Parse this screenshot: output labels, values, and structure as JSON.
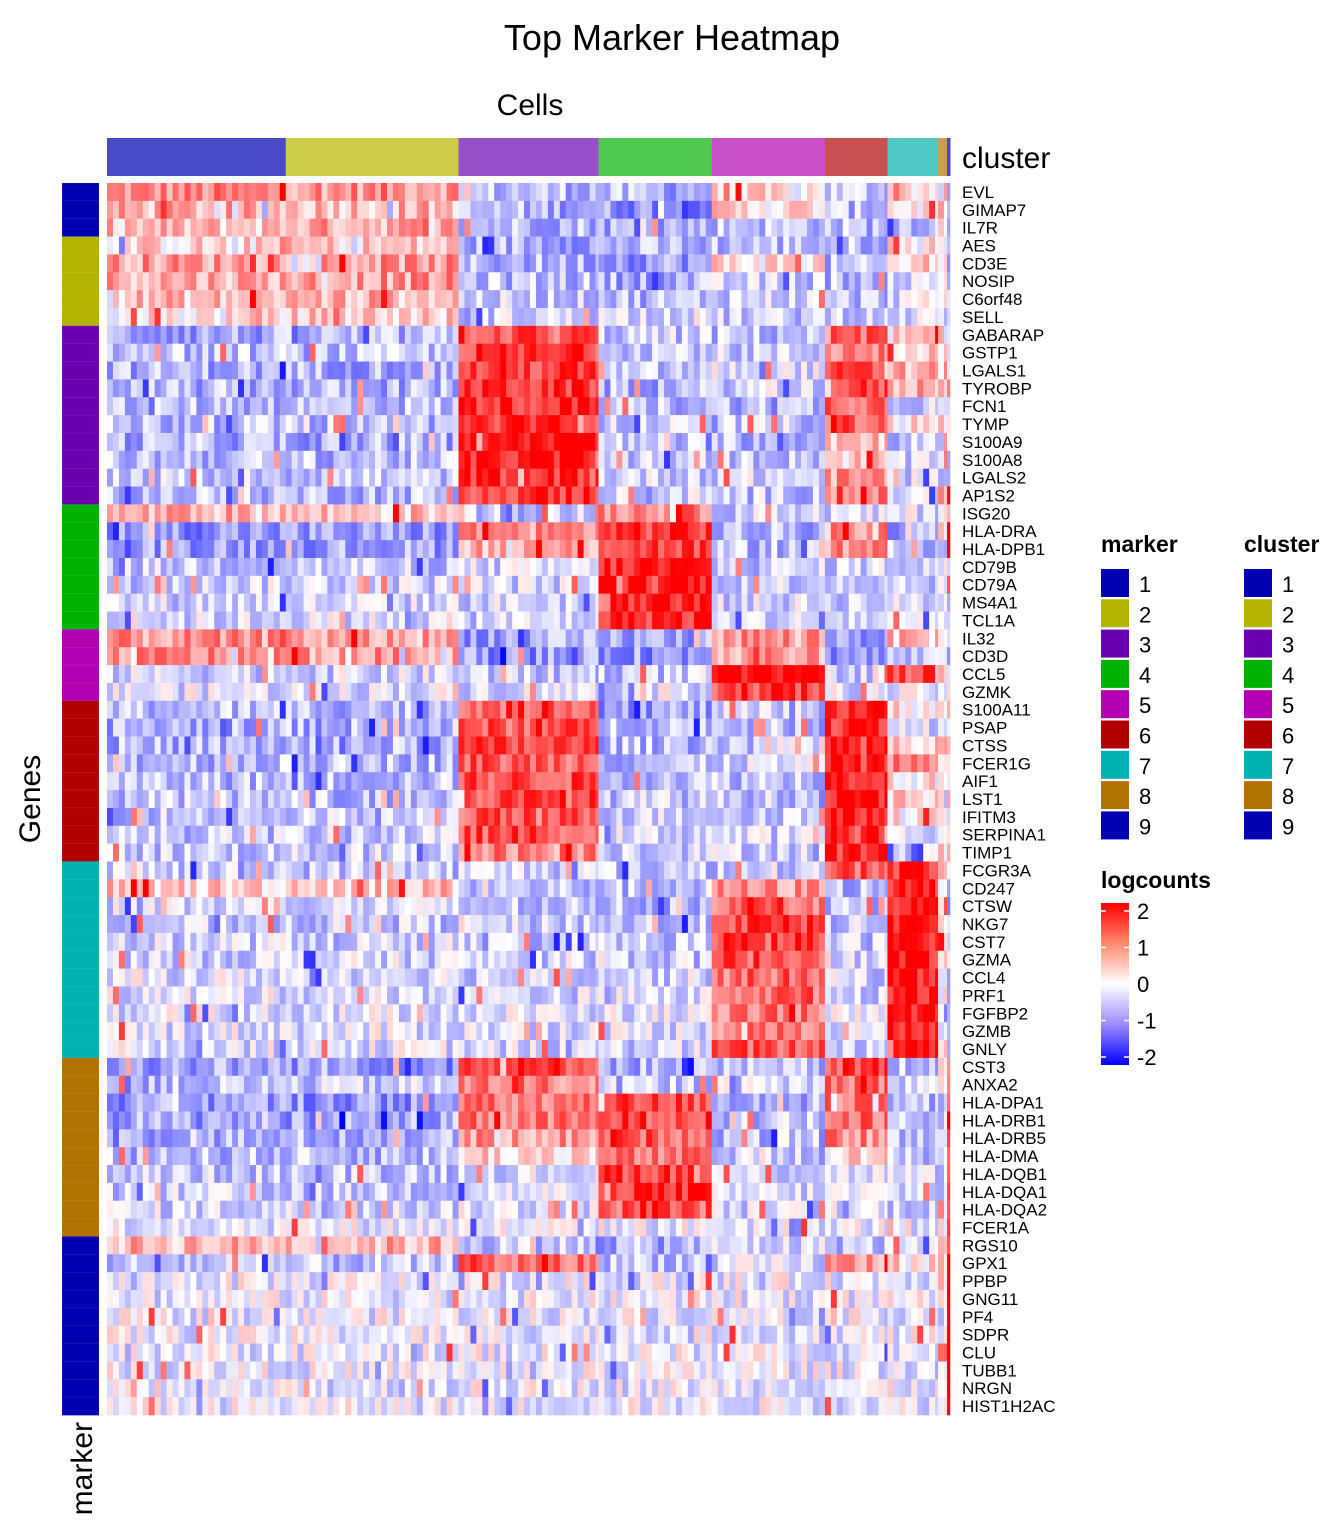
{
  "chart_data": {
    "type": "heatmap",
    "title": "Top Marker Heatmap",
    "column_title": "Cells",
    "row_title": "Genes",
    "row_annotation_label": "marker",
    "column_annotation_label": "cluster",
    "cluster_colors": {
      "1": "#0000b2",
      "2": "#b4b400",
      "3": "#6a00b2",
      "4": "#00b200",
      "5": "#b200b2",
      "6": "#b20000",
      "7": "#00b2b2",
      "8": "#b27200",
      "9": "#0000b2"
    },
    "column_clusters": [
      {
        "cluster": "1",
        "n_cells": 60
      },
      {
        "cluster": "2",
        "n_cells": 58
      },
      {
        "cluster": "3",
        "n_cells": 47
      },
      {
        "cluster": "4",
        "n_cells": 38
      },
      {
        "cluster": "5",
        "n_cells": 38
      },
      {
        "cluster": "6",
        "n_cells": 21
      },
      {
        "cluster": "7",
        "n_cells": 17
      },
      {
        "cluster": "8",
        "n_cells": 3
      },
      {
        "cluster": "9",
        "n_cells": 1
      }
    ],
    "genes": [
      {
        "name": "EVL",
        "marker": "1",
        "levels": [
          0.9,
          0.9,
          -0.5,
          -0.6,
          0.2,
          -0.4,
          0.3,
          0.5,
          -0.5
        ]
      },
      {
        "name": "GIMAP7",
        "marker": "1",
        "levels": [
          0.6,
          0.6,
          -0.6,
          -0.8,
          0.3,
          -0.5,
          0.2,
          0.4,
          -0.5
        ]
      },
      {
        "name": "IL7R",
        "marker": "1",
        "levels": [
          0.5,
          0.7,
          -0.5,
          -0.6,
          -0.4,
          -0.5,
          -0.4,
          0.3,
          -0.5
        ]
      },
      {
        "name": "AES",
        "marker": "2",
        "levels": [
          0.3,
          0.4,
          -0.6,
          -0.6,
          -0.5,
          -0.5,
          0.2,
          0.2,
          -0.6
        ]
      },
      {
        "name": "CD3E",
        "marker": "2",
        "levels": [
          0.8,
          0.8,
          -0.6,
          -0.7,
          0.3,
          -0.6,
          0.2,
          0.3,
          -0.6
        ]
      },
      {
        "name": "NOSIP",
        "marker": "2",
        "levels": [
          0.7,
          0.8,
          -0.5,
          -0.6,
          -0.4,
          -0.5,
          -0.3,
          0.3,
          -0.5
        ]
      },
      {
        "name": "C6orf48",
        "marker": "2",
        "levels": [
          0.5,
          0.6,
          -0.4,
          -0.5,
          -0.3,
          -0.5,
          -0.2,
          0.2,
          -0.5
        ]
      },
      {
        "name": "SELL",
        "marker": "2",
        "levels": [
          0.2,
          0.4,
          -0.3,
          -0.2,
          -0.4,
          -0.3,
          -0.3,
          -0.2,
          -0.3
        ]
      },
      {
        "name": "GABARAP",
        "marker": "3",
        "levels": [
          -0.7,
          -0.6,
          1.4,
          -0.4,
          -0.5,
          1.2,
          0.3,
          0.2,
          0.2
        ]
      },
      {
        "name": "GSTP1",
        "marker": "3",
        "levels": [
          -0.5,
          -0.5,
          1.5,
          -0.3,
          -0.4,
          1.0,
          0.5,
          0.3,
          0.2
        ]
      },
      {
        "name": "LGALS1",
        "marker": "3",
        "levels": [
          -0.6,
          -0.6,
          1.5,
          -0.5,
          -0.2,
          1.3,
          0.6,
          0.5,
          0.3
        ]
      },
      {
        "name": "TYROBP",
        "marker": "3",
        "levels": [
          -0.6,
          -0.6,
          1.6,
          -0.6,
          -0.3,
          1.4,
          0.7,
          0.5,
          0.3
        ]
      },
      {
        "name": "FCN1",
        "marker": "3",
        "levels": [
          -0.5,
          -0.5,
          1.7,
          -0.5,
          -0.5,
          1.3,
          -0.3,
          -0.3,
          -0.3
        ]
      },
      {
        "name": "TYMP",
        "marker": "3",
        "levels": [
          -0.5,
          -0.5,
          1.6,
          -0.4,
          -0.4,
          1.3,
          0.2,
          0.3,
          0.2
        ]
      },
      {
        "name": "S100A9",
        "marker": "3",
        "levels": [
          -0.6,
          -0.6,
          1.9,
          -0.5,
          -0.5,
          0.6,
          -0.4,
          -0.4,
          -0.4
        ]
      },
      {
        "name": "S100A8",
        "marker": "3",
        "levels": [
          -0.5,
          -0.5,
          1.8,
          -0.4,
          -0.4,
          0.4,
          -0.4,
          -0.3,
          -0.3
        ]
      },
      {
        "name": "LGALS2",
        "marker": "3",
        "levels": [
          -0.4,
          -0.4,
          1.7,
          -0.3,
          -0.3,
          0.8,
          -0.3,
          -0.2,
          -0.2
        ]
      },
      {
        "name": "AP1S2",
        "marker": "3",
        "levels": [
          -0.5,
          -0.5,
          1.6,
          -0.3,
          -0.4,
          0.9,
          -0.2,
          0.2,
          1.5
        ]
      },
      {
        "name": "ISG20",
        "marker": "4",
        "levels": [
          0.6,
          0.5,
          -0.4,
          1.0,
          -0.3,
          -0.3,
          -0.2,
          0.2,
          0.5
        ]
      },
      {
        "name": "HLA-DRA",
        "marker": "4",
        "levels": [
          -0.8,
          -0.8,
          0.9,
          1.6,
          -0.6,
          0.9,
          -0.6,
          -0.3,
          1.9
        ]
      },
      {
        "name": "HLA-DPB1",
        "marker": "4",
        "levels": [
          -0.7,
          -0.7,
          0.7,
          1.5,
          -0.5,
          0.8,
          -0.5,
          -0.3,
          1.8
        ]
      },
      {
        "name": "CD79B",
        "marker": "4",
        "levels": [
          -0.4,
          -0.4,
          -0.3,
          1.7,
          -0.4,
          -0.3,
          -0.3,
          -0.2,
          -0.3
        ]
      },
      {
        "name": "CD79A",
        "marker": "4",
        "levels": [
          -0.3,
          -0.3,
          -0.3,
          1.9,
          -0.3,
          -0.3,
          -0.3,
          -0.2,
          -0.3
        ]
      },
      {
        "name": "MS4A1",
        "marker": "4",
        "levels": [
          -0.3,
          -0.3,
          -0.3,
          1.8,
          -0.3,
          -0.3,
          -0.3,
          -0.2,
          -0.3
        ]
      },
      {
        "name": "TCL1A",
        "marker": "4",
        "levels": [
          -0.3,
          -0.2,
          -0.3,
          1.7,
          -0.3,
          -0.3,
          -0.3,
          -0.2,
          -0.3
        ]
      },
      {
        "name": "IL32",
        "marker": "5",
        "levels": [
          0.8,
          0.7,
          -0.7,
          -0.7,
          0.9,
          -0.7,
          0.5,
          0.3,
          -0.6
        ]
      },
      {
        "name": "CD3D",
        "marker": "5",
        "levels": [
          0.9,
          0.8,
          -0.8,
          -0.8,
          0.8,
          -0.8,
          -0.6,
          0.3,
          -0.7
        ]
      },
      {
        "name": "CCL5",
        "marker": "5",
        "levels": [
          -0.3,
          -0.3,
          -0.4,
          -0.4,
          1.9,
          -0.3,
          1.5,
          0.5,
          -0.3
        ]
      },
      {
        "name": "GZMK",
        "marker": "5",
        "levels": [
          -0.2,
          -0.2,
          -0.2,
          -0.2,
          1.5,
          -0.2,
          -0.2,
          -0.1,
          -0.2
        ]
      },
      {
        "name": "S100A11",
        "marker": "6",
        "levels": [
          -0.5,
          -0.5,
          1.4,
          -0.7,
          -0.4,
          1.7,
          0.3,
          0.3,
          0.2
        ]
      },
      {
        "name": "PSAP",
        "marker": "6",
        "levels": [
          -0.6,
          -0.6,
          1.3,
          -0.4,
          -0.5,
          1.7,
          -0.3,
          0.2,
          0.2
        ]
      },
      {
        "name": "CTSS",
        "marker": "6",
        "levels": [
          -0.6,
          -0.6,
          1.4,
          -0.5,
          -0.3,
          1.8,
          0.3,
          0.3,
          0.2
        ]
      },
      {
        "name": "FCER1G",
        "marker": "6",
        "levels": [
          -0.5,
          -0.5,
          1.3,
          -0.5,
          -0.3,
          1.9,
          0.9,
          0.5,
          0.3
        ]
      },
      {
        "name": "AIF1",
        "marker": "6",
        "levels": [
          -0.5,
          -0.5,
          1.4,
          -0.4,
          -0.4,
          1.9,
          0.2,
          0.2,
          0.2
        ]
      },
      {
        "name": "LST1",
        "marker": "6",
        "levels": [
          -0.5,
          -0.5,
          1.4,
          -0.4,
          -0.4,
          1.9,
          0.3,
          0.2,
          0.2
        ]
      },
      {
        "name": "IFITM3",
        "marker": "6",
        "levels": [
          -0.4,
          -0.4,
          1.3,
          -0.3,
          -0.3,
          1.8,
          0.2,
          0.2,
          0.2
        ]
      },
      {
        "name": "SERPINA1",
        "marker": "6",
        "levels": [
          -0.4,
          -0.4,
          1.4,
          -0.3,
          -0.3,
          1.8,
          -0.2,
          0.2,
          0.2
        ]
      },
      {
        "name": "TIMP1",
        "marker": "6",
        "levels": [
          -0.4,
          -0.4,
          1.0,
          -0.3,
          -0.3,
          1.7,
          -0.2,
          0.2,
          0.2
        ]
      },
      {
        "name": "FCGR3A",
        "marker": "7",
        "levels": [
          -0.4,
          -0.4,
          -0.3,
          -0.4,
          -0.3,
          1.4,
          1.7,
          0.3,
          -0.3
        ]
      },
      {
        "name": "CD247",
        "marker": "7",
        "levels": [
          0.4,
          0.5,
          -0.5,
          -0.5,
          0.8,
          -0.5,
          1.8,
          0.2,
          -0.5
        ]
      },
      {
        "name": "CTSW",
        "marker": "7",
        "levels": [
          -0.3,
          -0.3,
          -0.5,
          -0.5,
          1.2,
          -0.5,
          1.9,
          0.2,
          -0.5
        ]
      },
      {
        "name": "NKG7",
        "marker": "7",
        "levels": [
          -0.4,
          -0.4,
          -0.4,
          -0.5,
          1.5,
          -0.4,
          1.9,
          0.3,
          -0.5
        ]
      },
      {
        "name": "CST7",
        "marker": "7",
        "levels": [
          -0.3,
          -0.3,
          -0.4,
          -0.4,
          1.5,
          -0.4,
          1.9,
          0.2,
          -0.4
        ]
      },
      {
        "name": "GZMA",
        "marker": "7",
        "levels": [
          -0.3,
          -0.3,
          -0.3,
          -0.4,
          1.4,
          -0.3,
          1.8,
          0.2,
          -0.3
        ]
      },
      {
        "name": "CCL4",
        "marker": "7",
        "levels": [
          -0.2,
          -0.2,
          -0.3,
          -0.3,
          1.2,
          -0.3,
          1.8,
          0.2,
          -0.3
        ]
      },
      {
        "name": "PRF1",
        "marker": "7",
        "levels": [
          -0.2,
          -0.2,
          -0.3,
          -0.3,
          1.2,
          -0.3,
          1.9,
          0.2,
          -0.3
        ]
      },
      {
        "name": "FGFBP2",
        "marker": "7",
        "levels": [
          -0.2,
          -0.2,
          -0.2,
          -0.2,
          1.1,
          -0.2,
          1.9,
          0.1,
          -0.2
        ]
      },
      {
        "name": "GZMB",
        "marker": "7",
        "levels": [
          -0.2,
          -0.2,
          -0.2,
          -0.2,
          1.0,
          -0.2,
          1.9,
          0.1,
          -0.2
        ]
      },
      {
        "name": "GNLY",
        "marker": "7",
        "levels": [
          -0.2,
          -0.2,
          -0.3,
          -0.3,
          1.3,
          -0.3,
          1.9,
          0.2,
          -0.3
        ]
      },
      {
        "name": "CST3",
        "marker": "8",
        "levels": [
          -0.7,
          -0.7,
          1.5,
          -0.6,
          -0.6,
          1.5,
          -0.4,
          0.3,
          0.9
        ]
      },
      {
        "name": "ANXA2",
        "marker": "8",
        "levels": [
          -0.5,
          -0.4,
          1.0,
          -0.4,
          -0.3,
          1.2,
          -0.2,
          0.2,
          0.5
        ]
      },
      {
        "name": "HLA-DPA1",
        "marker": "8",
        "levels": [
          -0.8,
          -0.8,
          1.0,
          1.4,
          -0.6,
          1.0,
          -0.6,
          -0.3,
          1.5
        ]
      },
      {
        "name": "HLA-DRB1",
        "marker": "8",
        "levels": [
          -0.7,
          -0.7,
          1.0,
          1.5,
          -0.5,
          1.1,
          -0.6,
          -0.2,
          1.6
        ]
      },
      {
        "name": "HLA-DRB5",
        "marker": "8",
        "levels": [
          -0.6,
          -0.6,
          0.8,
          1.3,
          -0.5,
          0.9,
          -0.5,
          -0.2,
          1.5
        ]
      },
      {
        "name": "HLA-DMA",
        "marker": "8",
        "levels": [
          -0.5,
          -0.5,
          0.4,
          1.0,
          -0.4,
          0.3,
          -0.4,
          -0.2,
          1.0
        ]
      },
      {
        "name": "HLA-DQB1",
        "marker": "8",
        "levels": [
          -0.4,
          -0.4,
          -0.2,
          1.6,
          -0.3,
          -0.2,
          -0.3,
          -0.2,
          1.6
        ]
      },
      {
        "name": "HLA-DQA1",
        "marker": "8",
        "levels": [
          -0.4,
          -0.4,
          -0.2,
          1.7,
          -0.3,
          -0.2,
          -0.3,
          -0.2,
          1.6
        ]
      },
      {
        "name": "HLA-DQA2",
        "marker": "8",
        "levels": [
          -0.3,
          -0.3,
          -0.2,
          1.3,
          -0.3,
          -0.2,
          -0.3,
          -0.2,
          1.4
        ]
      },
      {
        "name": "FCER1A",
        "marker": "8",
        "levels": [
          -0.1,
          -0.1,
          -0.1,
          -0.1,
          -0.1,
          -0.1,
          -0.1,
          -0.1,
          1.5
        ]
      },
      {
        "name": "RGS10",
        "marker": "9",
        "levels": [
          0.6,
          0.6,
          -0.4,
          -0.6,
          -0.3,
          -0.4,
          -0.3,
          0.3,
          1.7
        ]
      },
      {
        "name": "GPX1",
        "marker": "9",
        "levels": [
          -0.5,
          -0.5,
          1.1,
          -0.4,
          -0.3,
          0.8,
          0.3,
          0.3,
          1.8
        ]
      },
      {
        "name": "PPBP",
        "marker": "9",
        "levels": [
          -0.1,
          -0.1,
          -0.1,
          -0.1,
          -0.1,
          -0.1,
          -0.1,
          -0.1,
          2.0
        ]
      },
      {
        "name": "GNG11",
        "marker": "9",
        "levels": [
          -0.1,
          -0.1,
          -0.1,
          -0.1,
          -0.1,
          -0.1,
          -0.1,
          -0.1,
          2.0
        ]
      },
      {
        "name": "PF4",
        "marker": "9",
        "levels": [
          -0.1,
          -0.1,
          -0.1,
          -0.1,
          -0.1,
          -0.1,
          -0.1,
          -0.1,
          2.0
        ]
      },
      {
        "name": "SDPR",
        "marker": "9",
        "levels": [
          -0.1,
          -0.1,
          -0.1,
          -0.1,
          -0.1,
          -0.1,
          -0.1,
          -0.1,
          2.0
        ]
      },
      {
        "name": "CLU",
        "marker": "9",
        "levels": [
          -0.1,
          -0.1,
          -0.1,
          -0.1,
          -0.1,
          -0.1,
          -0.1,
          -0.1,
          2.0
        ]
      },
      {
        "name": "TUBB1",
        "marker": "9",
        "levels": [
          -0.1,
          -0.1,
          -0.1,
          -0.1,
          -0.1,
          -0.1,
          -0.1,
          -0.1,
          2.0
        ]
      },
      {
        "name": "NRGN",
        "marker": "9",
        "levels": [
          -0.2,
          -0.2,
          -0.1,
          -0.1,
          -0.1,
          -0.1,
          -0.1,
          -0.1,
          2.0
        ]
      },
      {
        "name": "HIST1H2AC",
        "marker": "9",
        "levels": [
          -0.1,
          -0.1,
          -0.1,
          -0.1,
          -0.1,
          -0.1,
          -0.1,
          -0.1,
          2.0
        ]
      }
    ],
    "color_scale": {
      "title": "logcounts",
      "stops": [
        {
          "value": -2,
          "color": "#0000ff"
        },
        {
          "value": 0,
          "color": "#ffffff"
        },
        {
          "value": 2,
          "color": "#ff0000"
        }
      ],
      "ticks": [
        "2",
        "1",
        "0",
        "-1",
        "-2"
      ],
      "range": [
        -2,
        2
      ]
    },
    "legends": [
      {
        "title": "marker",
        "entries": [
          "1",
          "2",
          "3",
          "4",
          "5",
          "6",
          "7",
          "8",
          "9"
        ]
      },
      {
        "title": "cluster",
        "entries": [
          "1",
          "2",
          "3",
          "4",
          "5",
          "6",
          "7",
          "8",
          "9"
        ]
      }
    ],
    "legend_position": "right"
  }
}
